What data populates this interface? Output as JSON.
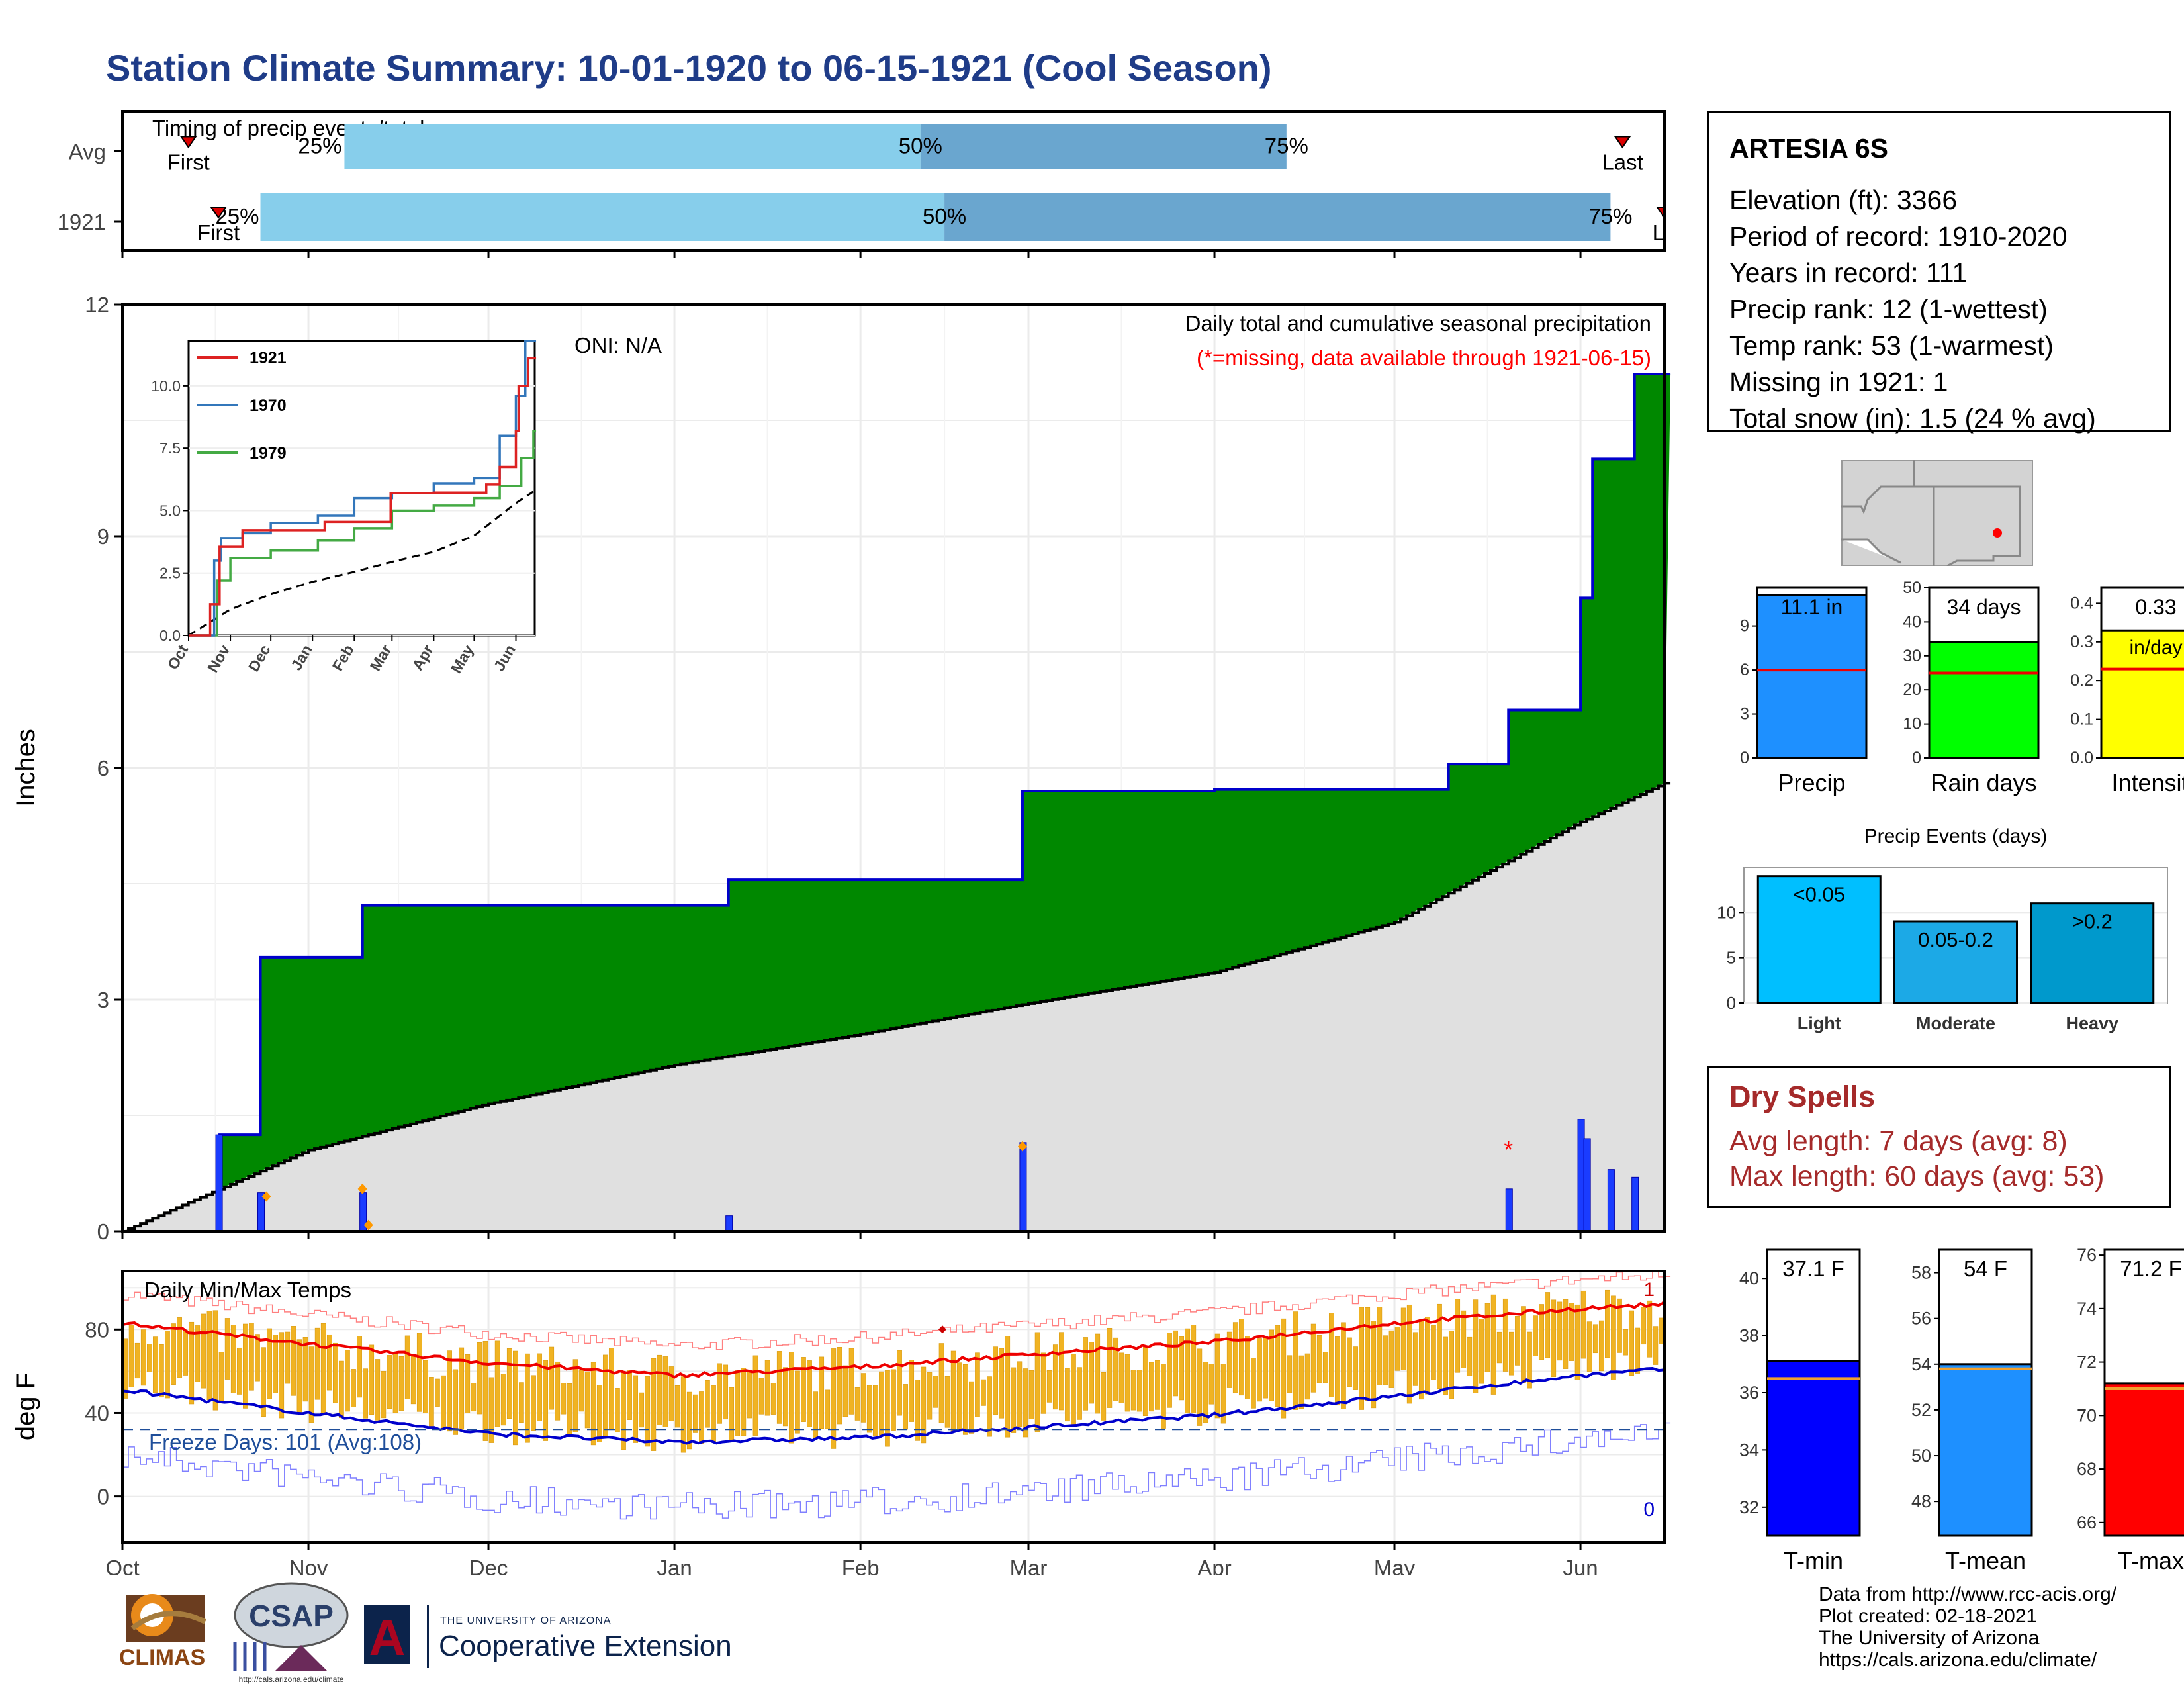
{
  "title": "Station Climate Summary: 10-01-1920 to 06-15-1921 (Cool Season)",
  "colors": {
    "title": "#1f3c88",
    "green": "#008800",
    "brown": "#8B5A00",
    "grey": "#e0e0e0",
    "blue_line": "#0000cc",
    "quart_light": "#87ceeb",
    "quart_dark": "#6aa6cf",
    "orange": "#f0b323"
  },
  "timing": {
    "label": "Timing of precip events/totals",
    "rows": [
      {
        "name": "Avg",
        "first_label": "First",
        "last_label": "Last",
        "p25": "25%",
        "p50": "50%",
        "p75": "75%",
        "first_date": "1920-10-12",
        "p25_date": "1920-11-07",
        "p50_date": "1921-02-11",
        "p75_date": "1921-04-13",
        "last_date": "1921-06-08"
      },
      {
        "name": "1921",
        "first_label": "First",
        "last_label": "La",
        "p25": "25%",
        "p50": "50%",
        "p75": "75%",
        "first_date": "1920-10-17",
        "p25_date": "1920-10-24",
        "p50_date": "1921-02-15",
        "p75_date": "1921-06-06",
        "last_date": "1921-06-15"
      }
    ]
  },
  "precip": {
    "ylabel": "Inches",
    "oni": "ONI: N/A",
    "caption": "Daily total and cumulative seasonal precipitation",
    "missing_note": "(*=missing, data available through 1921-06-15)",
    "yticks": [
      "0",
      "3",
      "6",
      "9",
      "12"
    ],
    "ylim": [
      0,
      12
    ],
    "xticks": [
      "Oct",
      "Nov",
      "Dec",
      "Jan",
      "Feb",
      "Mar",
      "Apr",
      "May",
      "Jun"
    ]
  },
  "inset": {
    "legend": [
      "1921",
      "1970",
      "1979"
    ],
    "yticks": [
      "0.0",
      "2.5",
      "5.0",
      "7.5",
      "10.0"
    ],
    "xticks": [
      "Oct",
      "Nov",
      "Dec",
      "Jan",
      "Feb",
      "Mar",
      "Apr",
      "May",
      "Jun"
    ]
  },
  "temps": {
    "label": "Daily Min/Max Temps",
    "ylabel": "deg F",
    "freeze": "Freeze Days: 101 (Avg:108)",
    "yticks": [
      "0",
      "40",
      "80"
    ],
    "count_top": "1",
    "count_bottom": "0",
    "xticks": [
      "Oct",
      "Nov",
      "Dec",
      "Jan",
      "Feb",
      "Mar",
      "Apr",
      "May",
      "Jun"
    ]
  },
  "station": {
    "name": "ARTESIA 6S",
    "elevation": "Elevation (ft): 3366",
    "period": "Period of record: 1910-2020",
    "years": "Years in record: 111",
    "precip_rank": "Precip rank: 12 (1-wettest)",
    "temp_rank": "Temp rank: 53 (1-warmest)",
    "missing": "Missing in 1921: 1",
    "snow": "Total snow (in): 1.5 (24 % avg)"
  },
  "mini_bars": [
    {
      "xlabel": "Precip",
      "value_label": "11.1 in",
      "value": 11.1,
      "avg": 6.0,
      "max": 11.6,
      "yticks": [
        "0",
        "3",
        "6",
        "9"
      ],
      "tickvals": [
        0,
        3,
        6,
        9
      ],
      "color": "#1e90ff"
    },
    {
      "xlabel": "Rain days",
      "value_label": "34 days",
      "value": 34,
      "avg": 25,
      "max": 50,
      "yticks": [
        "0",
        "10",
        "20",
        "30",
        "40",
        "50"
      ],
      "tickvals": [
        0,
        10,
        20,
        30,
        40,
        50
      ],
      "color": "#00ff00"
    },
    {
      "xlabel": "Intensity",
      "value_label": "0.33",
      "value_label2": "in/day",
      "value": 0.33,
      "avg": 0.23,
      "max": 0.44,
      "yticks": [
        "0.0",
        "0.1",
        "0.2",
        "0.3",
        "0.4"
      ],
      "tickvals": [
        0,
        0.1,
        0.2,
        0.3,
        0.4
      ],
      "color": "#ffff00"
    }
  ],
  "events": {
    "title": "Precip Events (days)",
    "yticks": [
      "0",
      "5",
      "10"
    ],
    "bars": [
      {
        "label": "Light",
        "inner": "<0.05",
        "value": 14,
        "color": "#00bfff"
      },
      {
        "label": "Moderate",
        "inner": "0.05-0.2",
        "value": 9,
        "color": "#1ca9e6"
      },
      {
        "label": "Heavy",
        "inner": ">0.2",
        "value": 11,
        "color": "#0099cc"
      }
    ]
  },
  "dry_spells": {
    "title": "Dry Spells",
    "avg": "Avg length: 7 days (avg: 8)",
    "max": "Max length: 60 days (avg: 53)"
  },
  "temp_bars": [
    {
      "xlabel": "T-min",
      "value_label": "37.1 F",
      "value": 37.1,
      "avg": 36.5,
      "ymin": 31,
      "ymax": 41,
      "yticks": [
        "32",
        "34",
        "36",
        "38",
        "40"
      ],
      "tickvals": [
        32,
        34,
        36,
        38,
        40
      ],
      "color": "#0000ff"
    },
    {
      "xlabel": "T-mean",
      "value_label": "54 F",
      "value": 54.0,
      "avg": 53.8,
      "ymin": 46.5,
      "ymax": 59,
      "yticks": [
        "48",
        "50",
        "52",
        "54",
        "56",
        "58"
      ],
      "tickvals": [
        48,
        50,
        52,
        54,
        56,
        58
      ],
      "color": "#1e90ff"
    },
    {
      "xlabel": "T-max",
      "value_label": "71.2 F",
      "value": 71.2,
      "avg": 71.0,
      "ymin": 65.5,
      "ymax": 76.2,
      "yticks": [
        "66",
        "68",
        "70",
        "72",
        "74",
        "76"
      ],
      "tickvals": [
        66,
        68,
        70,
        72,
        74,
        76
      ],
      "color": "#ff0000"
    }
  ],
  "credits": [
    "Data from http://www.rcc-acis.org/",
    "Plot created: 02-18-2021",
    "The University of Arizona",
    "https://cals.arizona.edu/climate/"
  ],
  "logos": {
    "climas": "CLIMAS",
    "csap": "CSAP",
    "csap_url": "http://cals.arizona.edu/climate",
    "ua_small": "THE UNIVERSITY OF ARIZONA",
    "ua_big": "Cooperative Extension",
    "ua_letter": "A"
  },
  "chart_data": [
    {
      "type": "step-area",
      "title": "Daily total and cumulative seasonal precipitation",
      "ylabel": "Inches",
      "ylim": [
        0,
        12
      ],
      "series": [
        {
          "name": "1921",
          "points": [
            [
              "1920-10-01",
              0
            ],
            [
              "1920-10-17",
              1.25
            ],
            [
              "1920-10-24",
              3.55
            ],
            [
              "1920-11-10",
              4.22
            ],
            [
              "1921-01-10",
              4.55
            ],
            [
              "1921-02-28",
              5.7
            ],
            [
              "1921-04-01",
              5.72
            ],
            [
              "1921-05-10",
              6.05
            ],
            [
              "1921-05-20",
              6.75
            ],
            [
              "1921-06-01",
              8.2
            ],
            [
              "1921-06-03",
              10.0
            ],
            [
              "1921-06-10",
              11.1
            ]
          ]
        }
      ],
      "daily_precip": [
        [
          "1920-10-17",
          1.25
        ],
        [
          "1920-10-24",
          0.5
        ],
        [
          "1920-11-10",
          0.5
        ],
        [
          "1921-01-10",
          0.2
        ],
        [
          "1921-02-28",
          1.15
        ],
        [
          "1921-05-20",
          0.55
        ],
        [
          "1921-06-01",
          1.45
        ],
        [
          "1921-06-02",
          1.2
        ],
        [
          "1921-06-06",
          0.8
        ],
        [
          "1921-06-10",
          0.7
        ]
      ],
      "average_cumulative": [
        [
          "1920-10-01",
          0
        ],
        [
          "1920-11-01",
          1.05
        ],
        [
          "1920-12-01",
          1.65
        ],
        [
          "1921-01-01",
          2.15
        ],
        [
          "1921-02-01",
          2.55
        ],
        [
          "1921-03-01",
          2.95
        ],
        [
          "1921-04-01",
          3.35
        ],
        [
          "1921-05-01",
          4.0
        ],
        [
          "1921-06-01",
          5.3
        ],
        [
          "1921-06-15",
          5.8
        ]
      ]
    },
    {
      "type": "line",
      "title": "Daily Min/Max Temps",
      "ylabel": "deg F",
      "series": [
        {
          "name": "avg max",
          "points": [
            [
              "1920-10-01",
              83
            ],
            [
              "1920-11-01",
              73
            ],
            [
              "1920-12-01",
              64
            ],
            [
              "1921-01-01",
              58
            ],
            [
              "1921-02-01",
              62
            ],
            [
              "1921-03-01",
              68
            ],
            [
              "1921-04-01",
              74
            ],
            [
              "1921-05-01",
              83
            ],
            [
              "1921-06-01",
              90
            ],
            [
              "1921-06-15",
              92
            ]
          ]
        },
        {
          "name": "avg min",
          "points": [
            [
              "1920-10-01",
              51
            ],
            [
              "1920-11-01",
              40
            ],
            [
              "1920-12-01",
              30
            ],
            [
              "1921-01-01",
              26
            ],
            [
              "1921-02-01",
              28
            ],
            [
              "1921-03-01",
              33
            ],
            [
              "1921-04-01",
              39
            ],
            [
              "1921-05-01",
              48
            ],
            [
              "1921-06-01",
              58
            ],
            [
              "1921-06-15",
              61
            ]
          ]
        }
      ],
      "freeze_line": 32
    }
  ]
}
